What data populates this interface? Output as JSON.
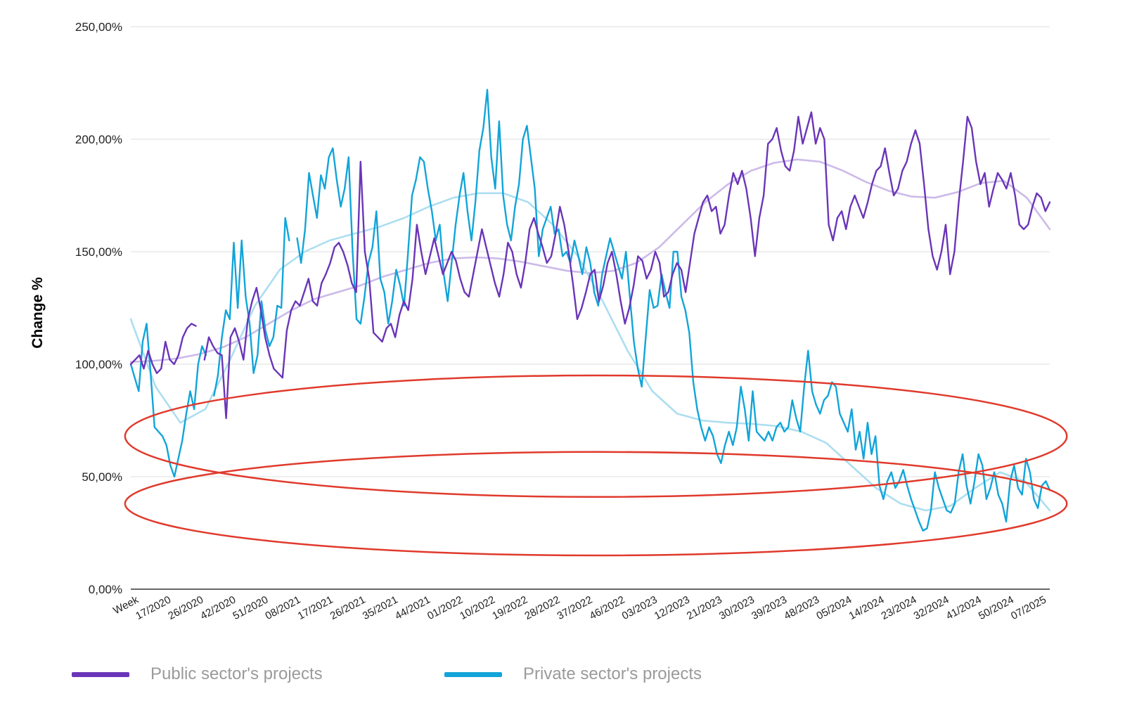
{
  "chart_data": {
    "type": "line",
    "title": "",
    "xlabel": "",
    "ylabel": "Change %",
    "ylim": [
      0,
      250
    ],
    "y_ticks": [
      "0,00%",
      "50,00%",
      "100,00%",
      "150,00%",
      "200,00%",
      "250,00%"
    ],
    "y_tick_values": [
      0,
      50,
      100,
      150,
      200,
      250
    ],
    "x_ticks": [
      "Week",
      "17/2020",
      "26/2020",
      "42/2020",
      "51/2020",
      "08/2021",
      "17/2021",
      "26/2021",
      "35/2021",
      "44/2021",
      "01/2022",
      "10/2022",
      "19/2022",
      "28/2022",
      "37/2022",
      "46/2022",
      "03/2023",
      "12/2023",
      "21/2023",
      "30/2023",
      "39/2023",
      "48/2023",
      "05/2024",
      "14/2024",
      "23/2024",
      "32/2024",
      "41/2024",
      "50/2024",
      "07/2025"
    ],
    "grid": true,
    "legend_position": "bottom",
    "series": [
      {
        "name": "Public sector's projects",
        "color": "#6a35b8",
        "values": [
          100,
          102,
          104,
          98,
          106,
          100,
          96,
          98,
          110,
          102,
          100,
          104,
          112,
          116,
          118,
          117,
          null,
          102,
          112,
          108,
          105,
          104,
          76,
          112,
          116,
          110,
          102,
          120,
          128,
          134,
          124,
          112,
          104,
          98,
          96,
          94,
          115,
          124,
          128,
          126,
          132,
          138,
          128,
          126,
          136,
          140,
          145,
          152,
          154,
          150,
          144,
          136,
          132,
          190,
          150,
          138,
          114,
          112,
          110,
          116,
          118,
          112,
          122,
          128,
          124,
          138,
          162,
          150,
          140,
          148,
          156,
          148,
          140,
          145,
          150,
          146,
          138,
          132,
          130,
          140,
          150,
          160,
          152,
          144,
          136,
          130,
          140,
          154,
          150,
          140,
          134,
          145,
          160,
          165,
          158,
          152,
          145,
          148,
          158,
          170,
          162,
          150,
          136,
          120,
          125,
          132,
          140,
          142,
          128,
          135,
          145,
          150,
          140,
          128,
          118,
          125,
          135,
          148,
          146,
          138,
          142,
          150,
          145,
          130,
          132,
          140,
          145,
          142,
          132,
          145,
          158,
          165,
          172,
          175,
          168,
          170,
          158,
          162,
          175,
          185,
          180,
          186,
          178,
          165,
          148,
          165,
          175,
          198,
          200,
          205,
          195,
          188,
          186,
          195,
          210,
          198,
          205,
          212,
          198,
          205,
          200,
          162,
          155,
          165,
          168,
          160,
          170,
          175,
          170,
          165,
          172,
          180,
          186,
          188,
          196,
          185,
          175,
          178,
          186,
          190,
          198,
          204,
          198,
          180,
          160,
          148,
          142,
          150,
          162,
          140,
          150,
          172,
          190,
          210,
          205,
          190,
          180,
          185,
          170,
          178,
          185,
          182,
          178,
          185,
          175,
          162,
          160,
          162,
          170,
          176,
          174,
          168,
          172
        ]
      },
      {
        "name": "Private sector's projects",
        "color": "#12a4d9",
        "values": [
          100,
          94,
          88,
          110,
          118,
          96,
          72,
          70,
          68,
          64,
          55,
          50,
          58,
          66,
          78,
          88,
          80,
          100,
          108,
          104,
          null,
          86,
          95,
          112,
          124,
          120,
          154,
          125,
          155,
          130,
          118,
          96,
          104,
          128,
          115,
          108,
          112,
          126,
          125,
          165,
          155,
          null,
          156,
          145,
          160,
          185,
          175,
          165,
          184,
          178,
          192,
          196,
          182,
          170,
          178,
          192,
          150,
          120,
          118,
          130,
          145,
          152,
          168,
          138,
          132,
          118,
          128,
          142,
          135,
          126,
          150,
          175,
          182,
          192,
          190,
          178,
          168,
          155,
          162,
          140,
          128,
          145,
          162,
          175,
          185,
          168,
          155,
          172,
          195,
          205,
          222,
          192,
          178,
          208,
          175,
          162,
          155,
          170,
          180,
          200,
          206,
          192,
          178,
          148,
          160,
          165,
          170,
          158,
          160,
          148,
          150,
          145,
          155,
          148,
          140,
          152,
          145,
          132,
          126,
          140,
          148,
          156,
          150,
          144,
          138,
          150,
          130,
          110,
          98,
          90,
          112,
          133,
          125,
          126,
          140,
          132,
          125,
          150,
          150,
          130,
          124,
          114,
          92,
          80,
          72,
          66,
          72,
          68,
          60,
          56,
          64,
          70,
          64,
          72,
          90,
          80,
          66,
          88,
          70,
          68,
          66,
          70,
          66,
          72,
          74,
          70,
          72,
          84,
          76,
          70,
          90,
          106,
          88,
          82,
          78,
          84,
          86,
          92,
          90,
          78,
          74,
          70,
          80,
          62,
          70,
          58,
          74,
          60,
          68,
          46,
          40,
          48,
          52,
          45,
          48,
          53,
          46,
          40,
          35,
          30,
          26,
          27,
          35,
          52,
          45,
          40,
          35,
          34,
          38,
          52,
          60,
          46,
          38,
          48,
          60,
          55,
          40,
          45,
          52,
          42,
          38,
          30,
          48,
          55,
          45,
          42,
          58,
          52,
          40,
          36,
          46,
          48,
          44
        ]
      },
      {
        "name": "",
        "color": "#c9b6e8",
        "values": [
          101,
          101.5,
          102.5,
          104.5,
          107.5,
          112,
          118,
          124,
          129,
          132,
          135,
          139,
          142,
          145,
          147,
          147.5,
          147,
          145.5,
          143.5,
          141.5,
          140.5,
          141.5,
          145,
          152,
          162,
          172,
          180,
          186,
          189.5,
          191,
          190,
          186,
          181,
          177,
          174.5,
          174,
          176.5,
          180.5,
          181.5,
          174,
          160
        ]
      },
      {
        "name": "",
        "color": "#a8dcef",
        "values": [
          120,
          90,
          74,
          80,
          102,
          126,
          142,
          150,
          155,
          158,
          161,
          165,
          170,
          174,
          176,
          176,
          172,
          162,
          148,
          128,
          106,
          88,
          78,
          75,
          74,
          73.5,
          72.5,
          70,
          65,
          55,
          45,
          38,
          35,
          37,
          45,
          52,
          48,
          35
        ]
      }
    ],
    "annotations": [
      {
        "type": "ellipse",
        "color": "#e03a2c",
        "x_range": [
          "44/2023",
          "20/2024"
        ],
        "y_range": [
          41,
          95
        ]
      },
      {
        "type": "ellipse",
        "color": "#e03a2c",
        "x_range": [
          "45/2024",
          "12/2025"
        ],
        "y_range": [
          15,
          61
        ]
      }
    ]
  }
}
